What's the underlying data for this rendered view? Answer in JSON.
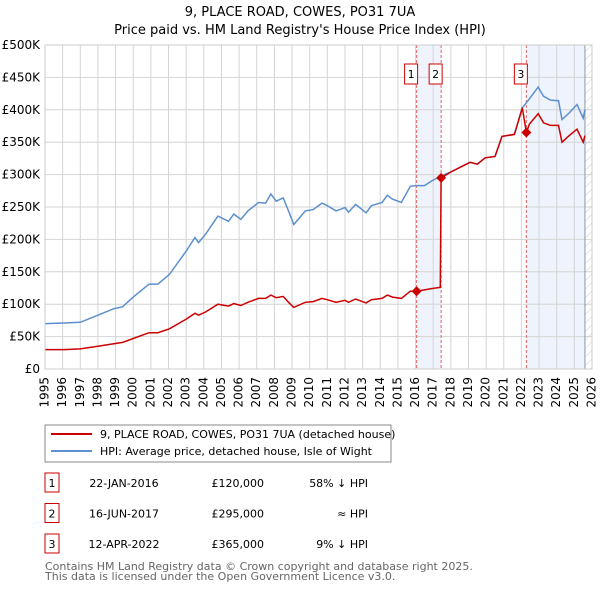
{
  "title": "9, PLACE ROAD, COWES, PO31 7UA",
  "subtitle": "Price paid vs. HM Land Registry's House Price Index (HPI)",
  "colors": {
    "property": "#cc0000",
    "hpi": "#5b8fd0",
    "shade": "#eef3fc"
  },
  "chart_data": {
    "type": "line",
    "title": "9, PLACE ROAD, COWES, PO31 7UA",
    "subtitle": "Price paid vs. HM Land Registry's House Price Index (HPI)",
    "xlim": [
      1995,
      2026
    ],
    "ylim": [
      0,
      500000
    ],
    "x_ticks": [
      "1995",
      "1996",
      "1997",
      "1998",
      "1999",
      "2000",
      "2001",
      "2002",
      "2003",
      "2004",
      "2005",
      "2006",
      "2007",
      "2008",
      "2009",
      "2010",
      "2011",
      "2012",
      "2013",
      "2014",
      "2015",
      "2016",
      "2017",
      "2018",
      "2019",
      "2020",
      "2021",
      "2022",
      "2023",
      "2024",
      "2025",
      "2026"
    ],
    "y_ticks": [
      {
        "v": 0,
        "label": "£0"
      },
      {
        "v": 50000,
        "label": "£50K"
      },
      {
        "v": 100000,
        "label": "£100K"
      },
      {
        "v": 150000,
        "label": "£150K"
      },
      {
        "v": 200000,
        "label": "£200K"
      },
      {
        "v": 250000,
        "label": "£250K"
      },
      {
        "v": 300000,
        "label": "£300K"
      },
      {
        "v": 350000,
        "label": "£350K"
      },
      {
        "v": 400000,
        "label": "£400K"
      },
      {
        "v": 450000,
        "label": "£450K"
      },
      {
        "v": 500000,
        "label": "£500K"
      }
    ],
    "grid": true,
    "series": [
      {
        "name": "9, PLACE ROAD, COWES, PO31 7UA (detached house)",
        "color": "#cc0000",
        "x": [
          1995,
          1996.1,
          1997,
          1998,
          1998.9,
          1999.4,
          2000,
          2000.9,
          2001.4,
          2002.05,
          2003,
          2003.5,
          2003.7,
          2004.1,
          2004.8,
          2005.4,
          2005.7,
          2006.1,
          2006.5,
          2007.1,
          2007.5,
          2007.8,
          2008.1,
          2008.5,
          2008.8,
          2009.1,
          2009.75,
          2010.2,
          2010.7,
          2011,
          2011.5,
          2012,
          2012.2,
          2012.6,
          2013.2,
          2013.5,
          2014.1,
          2014.4,
          2014.7,
          2015.2,
          2015.7,
          2016.06,
          2016.5,
          2016.9,
          2017.4,
          2017.45,
          2018,
          2018.65,
          2019.1,
          2019.5,
          2019.95,
          2020.5,
          2020.9,
          2021.6,
          2022.05,
          2022.28,
          2022.45,
          2022.95,
          2023.25,
          2023.65,
          2024.1,
          2024.3,
          2024.7,
          2025.15,
          2025.5,
          2025.6
        ],
        "y": [
          30000,
          30000,
          31000,
          35000,
          39000,
          41000,
          47000,
          56000,
          56000,
          62000,
          77000,
          86000,
          83000,
          88000,
          100000,
          97000,
          101000,
          98000,
          103000,
          109000,
          109000,
          114000,
          110000,
          112000,
          103000,
          95000,
          103000,
          104000,
          109000,
          107000,
          103000,
          106000,
          103000,
          108000,
          102000,
          107000,
          109000,
          114000,
          111000,
          109000,
          120000,
          120000,
          122000,
          124000,
          126000,
          295000,
          304000,
          313000,
          319000,
          316000,
          326000,
          328000,
          359000,
          362000,
          403000,
          365000,
          378000,
          394000,
          380000,
          376000,
          376000,
          350000,
          360000,
          370000,
          350000,
          360000
        ]
      },
      {
        "name": "HPI: Average price, detached house, Isle of Wight",
        "color": "#5b8fd0",
        "x": [
          1995,
          1996.1,
          1997,
          1998,
          1998.9,
          1999.4,
          2000,
          2000.9,
          2001.4,
          2002.05,
          2003,
          2003.5,
          2003.7,
          2004.1,
          2004.8,
          2005.4,
          2005.7,
          2006.1,
          2006.5,
          2007.1,
          2007.5,
          2007.8,
          2008.1,
          2008.5,
          2008.8,
          2009.1,
          2009.75,
          2010.2,
          2010.7,
          2011,
          2011.5,
          2012,
          2012.2,
          2012.6,
          2013.2,
          2013.5,
          2014.1,
          2014.4,
          2014.7,
          2015.2,
          2015.7,
          2016,
          2016.5,
          2016.9,
          2017.45,
          2018,
          2018.65,
          2019.1,
          2019.5,
          2019.95,
          2020.5,
          2020.9,
          2021.6,
          2022.05,
          2022.45,
          2022.95,
          2023.25,
          2023.65,
          2024.1,
          2024.3,
          2024.7,
          2025.15,
          2025.5,
          2025.6
        ],
        "y": [
          70000,
          71000,
          72000,
          83000,
          93000,
          96000,
          111000,
          131000,
          131000,
          146000,
          182000,
          203000,
          195000,
          208000,
          236000,
          228000,
          239000,
          231000,
          244000,
          257000,
          256000,
          270000,
          259000,
          264000,
          244000,
          223000,
          244000,
          246000,
          256000,
          252000,
          244000,
          249000,
          242000,
          254000,
          241000,
          252000,
          257000,
          268000,
          262000,
          257000,
          282000,
          283000,
          283000,
          290000,
          298000,
          304000,
          313000,
          319000,
          316000,
          326000,
          328000,
          359000,
          362000,
          403000,
          417000,
          435000,
          421000,
          415000,
          414000,
          385000,
          395000,
          408000,
          387000,
          400000
        ]
      }
    ],
    "sales": [
      {
        "label": "1",
        "x": 2016.06,
        "y": 120000
      },
      {
        "label": "2",
        "x": 2017.45,
        "y": 295000
      },
      {
        "label": "3",
        "x": 2022.28,
        "y": 365000
      }
    ],
    "shaded_ranges": [
      [
        2016.06,
        2017.45
      ],
      [
        2022.28,
        2025.6
      ]
    ],
    "forecast_hatch_from": 2025.6,
    "legend_placement": "below"
  },
  "legend": {
    "property": "9, PLACE ROAD, COWES, PO31 7UA (detached house)",
    "hpi": "HPI: Average price, detached house, Isle of Wight"
  },
  "transactions": [
    {
      "num": "1",
      "date": "22-JAN-2016",
      "price": "£120,000",
      "hpi": "58% ↓ HPI"
    },
    {
      "num": "2",
      "date": "16-JUN-2017",
      "price": "£295,000",
      "hpi": "≈ HPI"
    },
    {
      "num": "3",
      "date": "12-APR-2022",
      "price": "£365,000",
      "hpi": "9% ↓ HPI"
    }
  ],
  "footer": {
    "line1": "Contains HM Land Registry data © Crown copyright and database right 2025.",
    "line2": "This data is licensed under the Open Government Licence v3.0."
  }
}
